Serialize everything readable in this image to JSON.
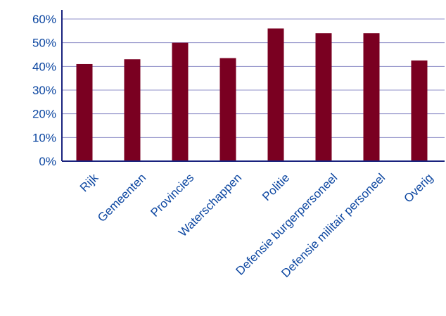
{
  "chart_data": {
    "type": "bar",
    "categories": [
      "Rijk",
      "Gemeenten",
      "Provincies",
      "Waterschappen",
      "Politie",
      "Defensie burgerpersoneel",
      "Defensie militair personeel",
      "Overig"
    ],
    "values": [
      41,
      43,
      50,
      43.5,
      56,
      54,
      54,
      42.5
    ],
    "y_ticks": [
      "0%",
      "10%",
      "20%",
      "30%",
      "40%",
      "50%",
      "60%"
    ],
    "ylim": [
      0,
      60
    ],
    "grid": true,
    "bar_color": "#7a0021",
    "grid_color": "#8f8fc8",
    "axis_color": "#1a237e",
    "text_color": "#0d47a1"
  }
}
